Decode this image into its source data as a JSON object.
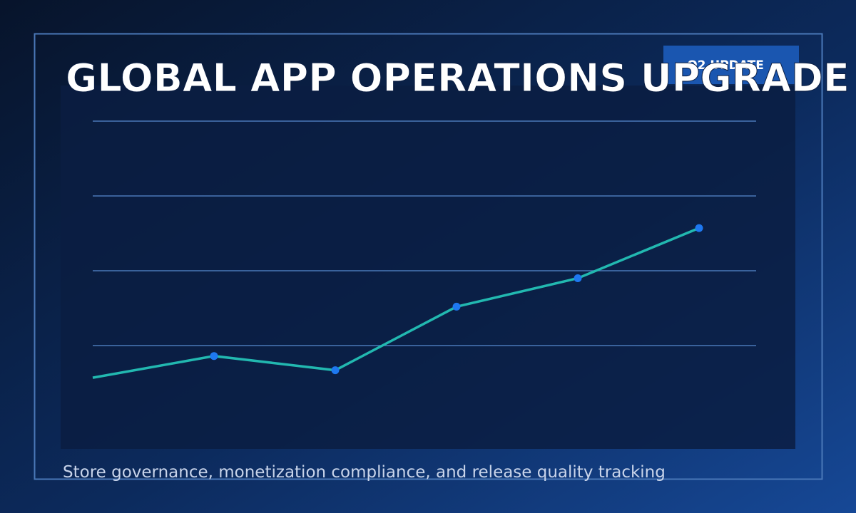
{
  "chart_data": {
    "type": "line",
    "title": "GLOBAL APP OPERATIONS UPGRADE",
    "badge": "Q2 UPDATE",
    "subtitle": "Store governance, monetization compliance, and release quality tracking",
    "categories": [
      null,
      null,
      null,
      null,
      null,
      null
    ],
    "series": [
      {
        "color": "#22b8b0",
        "marker_color": "#1e78f0",
        "values": [
          0.57,
          0.86,
          0.67,
          1.52,
          1.9,
          2.57
        ]
      }
    ],
    "ylim": [
      0,
      5
    ],
    "yticks": [
      1,
      2,
      3,
      4
    ],
    "grid": true,
    "grid_color": "#4a78b8"
  }
}
